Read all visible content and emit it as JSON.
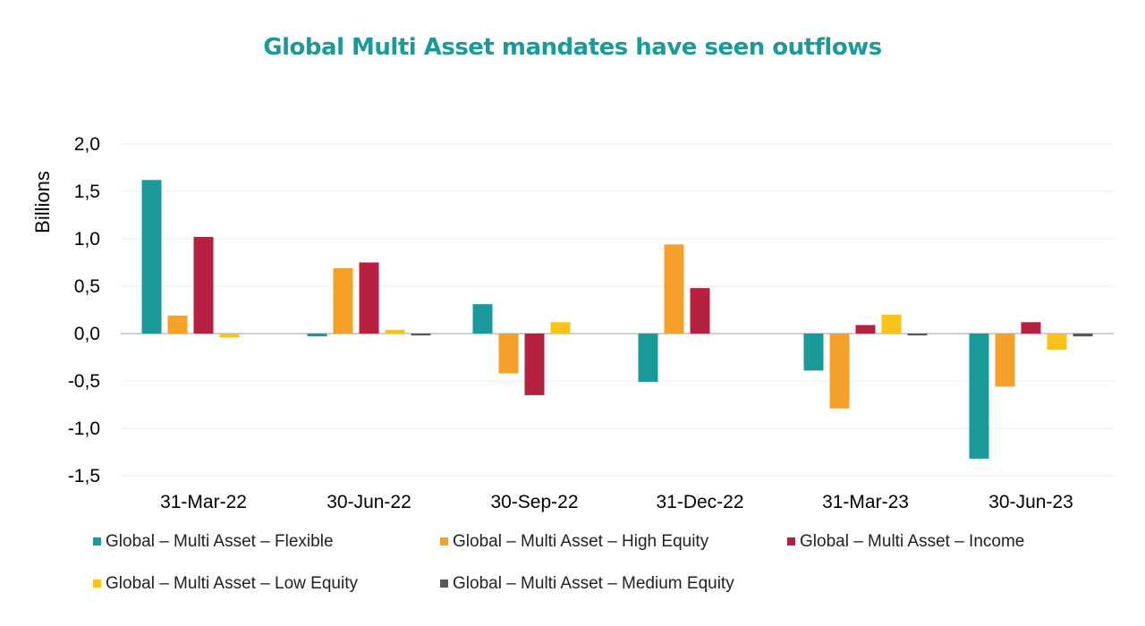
{
  "chart_data": {
    "type": "bar",
    "title": "Global Multi Asset mandates have seen outflows",
    "xlabel": "",
    "ylabel": "Billions",
    "ylim": [
      -1.5,
      2.0
    ],
    "yticks": [
      "2,0",
      "1,5",
      "1,0",
      "0,5",
      "0,0",
      "-0,5",
      "-1,0",
      "-1,5"
    ],
    "ytick_values": [
      2.0,
      1.5,
      1.0,
      0.5,
      0.0,
      -0.5,
      -1.0,
      -1.5
    ],
    "categories": [
      "31-Mar-22",
      "30-Jun-22",
      "30-Sep-22",
      "31-Dec-22",
      "31-Mar-23",
      "30-Jun-23"
    ],
    "grid": true,
    "legend_position": "bottom",
    "series": [
      {
        "name": "Global – Multi Asset – Flexible",
        "color": "#1a9a9a",
        "values": [
          1.62,
          -0.03,
          0.31,
          -0.51,
          -0.39,
          -1.32
        ]
      },
      {
        "name": "Global – Multi Asset – High Equity",
        "color": "#f5a02a",
        "values": [
          0.19,
          0.69,
          -0.42,
          0.94,
          -0.79,
          -0.56
        ]
      },
      {
        "name": "Global – Multi Asset – Income",
        "color": "#b5213e",
        "values": [
          1.02,
          0.75,
          -0.65,
          0.48,
          0.09,
          0.12
        ]
      },
      {
        "name": "Global – Multi Asset – Low Equity",
        "color": "#f9c21b",
        "values": [
          -0.04,
          0.04,
          0.12,
          0.0,
          0.2,
          -0.17
        ]
      },
      {
        "name": "Global – Multi Asset – Medium Equity",
        "color": "#595959",
        "values": [
          0.0,
          -0.02,
          0.0,
          0.0,
          -0.02,
          -0.03
        ]
      }
    ]
  }
}
